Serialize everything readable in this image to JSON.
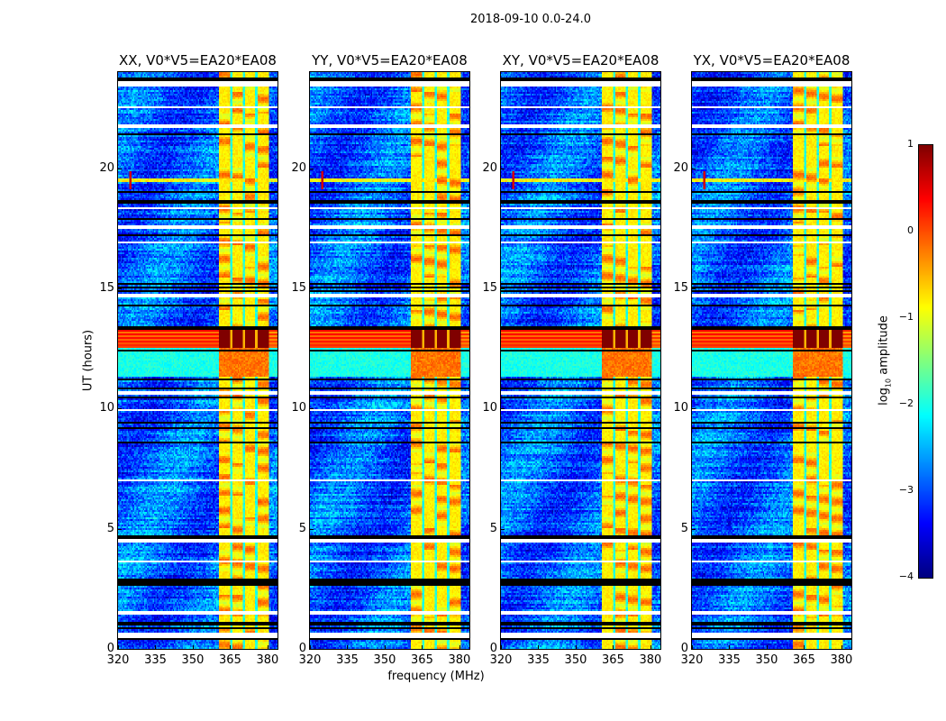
{
  "chart_data": {
    "type": "heatmap",
    "title": "2018-09-10 0.0-24.0",
    "panels": [
      {
        "title": "XX, V0*V5=EA20*EA08",
        "seed": 11
      },
      {
        "title": "YY, V0*V5=EA20*EA08",
        "seed": 23
      },
      {
        "title": "XY, V0*V5=EA20*EA08",
        "seed": 37
      },
      {
        "title": "YX, V0*V5=EA20*EA08",
        "seed": 53
      }
    ],
    "xlabel": "frequency (MHz)",
    "ylabel": "UT (hours)",
    "xlim": [
      320,
      384
    ],
    "ylim": [
      0,
      24
    ],
    "xticks": [
      320,
      335,
      350,
      365,
      380
    ],
    "xtick_labels": [
      "320",
      "335",
      "350",
      "365",
      "380"
    ],
    "yticks": [
      0,
      5,
      10,
      15,
      20
    ],
    "ytick_labels": [
      "0",
      "5",
      "10",
      "15",
      "20"
    ],
    "colorbar": {
      "label_main": "log",
      "label_sub": "10",
      "label_rest": " amplitude",
      "range": [
        -4,
        1
      ],
      "ticks": [
        -4,
        -3,
        -2,
        -1,
        0,
        1
      ],
      "tick_labels": [
        "−4",
        "−3",
        "−2",
        "−1",
        "0",
        "1"
      ],
      "colormap": "jet"
    },
    "features": {
      "background_log_amp": -2.9,
      "rfi_band_mhz": [
        360.5,
        380.3
      ],
      "rfi_log_amp": -0.6,
      "rfi_channel_gaps_mhz": [
        365.5,
        370.5,
        375.5
      ],
      "flagged_ut_ranges": [
        [
          23.4,
          23.6
        ],
        [
          22.5,
          22.55
        ],
        [
          21.65,
          21.85
        ],
        [
          18.3,
          18.4
        ],
        [
          17.5,
          17.6
        ],
        [
          16.9,
          16.95
        ],
        [
          14.6,
          14.75
        ],
        [
          10.6,
          10.75
        ],
        [
          9.9,
          9.95
        ],
        [
          8.0,
          8.03
        ],
        [
          7.0,
          7.03
        ],
        [
          4.4,
          4.6
        ],
        [
          3.6,
          3.65
        ],
        [
          1.45,
          1.55
        ],
        [
          0.45,
          0.7
        ]
      ],
      "dropout_ut_lines": [
        23.7,
        21.4,
        19.0,
        18.6,
        17.9,
        17.2,
        15.2,
        15.05,
        14.9,
        14.3,
        13.35,
        12.4,
        11.2,
        10.85,
        10.45,
        9.4,
        9.2,
        8.6,
        4.65,
        2.85,
        2.7,
        1.05,
        0.85,
        0.4
      ],
      "strong_event_ut": [
        12.55,
        13.25
      ],
      "strong_event_log_amp": 1.0,
      "enhanced_ut": [
        11.3,
        12.5
      ],
      "spike": {
        "ut": 19.5,
        "mhz": 325,
        "log_amp": 0.6
      }
    }
  }
}
